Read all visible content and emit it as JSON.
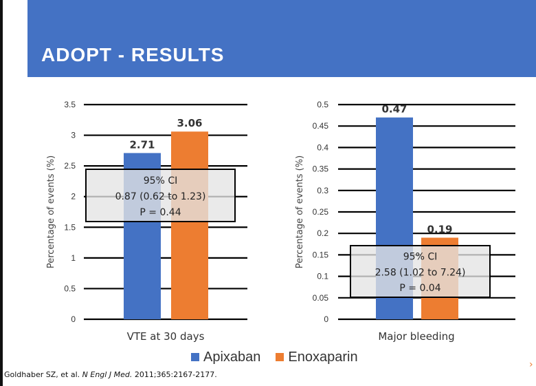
{
  "slide": {
    "title": "ADOPT - RESULTS",
    "citation_authors": "Goldhaber SZ, et al.",
    "citation_journal": "N Engl J Med.",
    "citation_ref": "2011;365:2167-2177.",
    "banner_color": "#4472C4"
  },
  "legend": [
    {
      "name": "Apixaban",
      "color": "#4472C4"
    },
    {
      "name": "Enoxaparin",
      "color": "#ED7D31"
    }
  ],
  "chart_data": [
    {
      "type": "bar",
      "categories": [
        "VTE at 30 days"
      ],
      "series": [
        {
          "name": "Apixaban",
          "values": [
            2.71
          ],
          "color": "#4472C4"
        },
        {
          "name": "Enoxaparin",
          "values": [
            3.06
          ],
          "color": "#ED7D31"
        }
      ],
      "data_labels": [
        "2.71",
        "3.06"
      ],
      "ylabel": "Percentage of events (%)",
      "ylim": [
        0,
        3.5
      ],
      "yticks": [
        "0",
        "0.5",
        "1",
        "1.5",
        "2",
        "2.5",
        "3",
        "3.5"
      ],
      "grid": true,
      "annotation": {
        "lines": [
          "95% CI",
          "0.87 (0.62 to 1.23)",
          "P = 0.44"
        ]
      }
    },
    {
      "type": "bar",
      "categories": [
        "Major bleeding"
      ],
      "series": [
        {
          "name": "Apixaban",
          "values": [
            0.47
          ],
          "color": "#4472C4"
        },
        {
          "name": "Enoxaparin",
          "values": [
            0.19
          ],
          "color": "#ED7D31"
        }
      ],
      "data_labels": [
        "0.47",
        "0.19"
      ],
      "ylabel": "Percentage of events (%)",
      "ylim": [
        0,
        0.5
      ],
      "yticks": [
        "0",
        "0.05",
        "0.1",
        "0.15",
        "0.2",
        "0.25",
        "0.3",
        "0.35",
        "0.4",
        "0.45",
        "0.5"
      ],
      "grid": true,
      "annotation": {
        "lines": [
          "95% CI",
          "2.58 (1.02 to 7.24)",
          "P = 0.04"
        ]
      }
    }
  ]
}
